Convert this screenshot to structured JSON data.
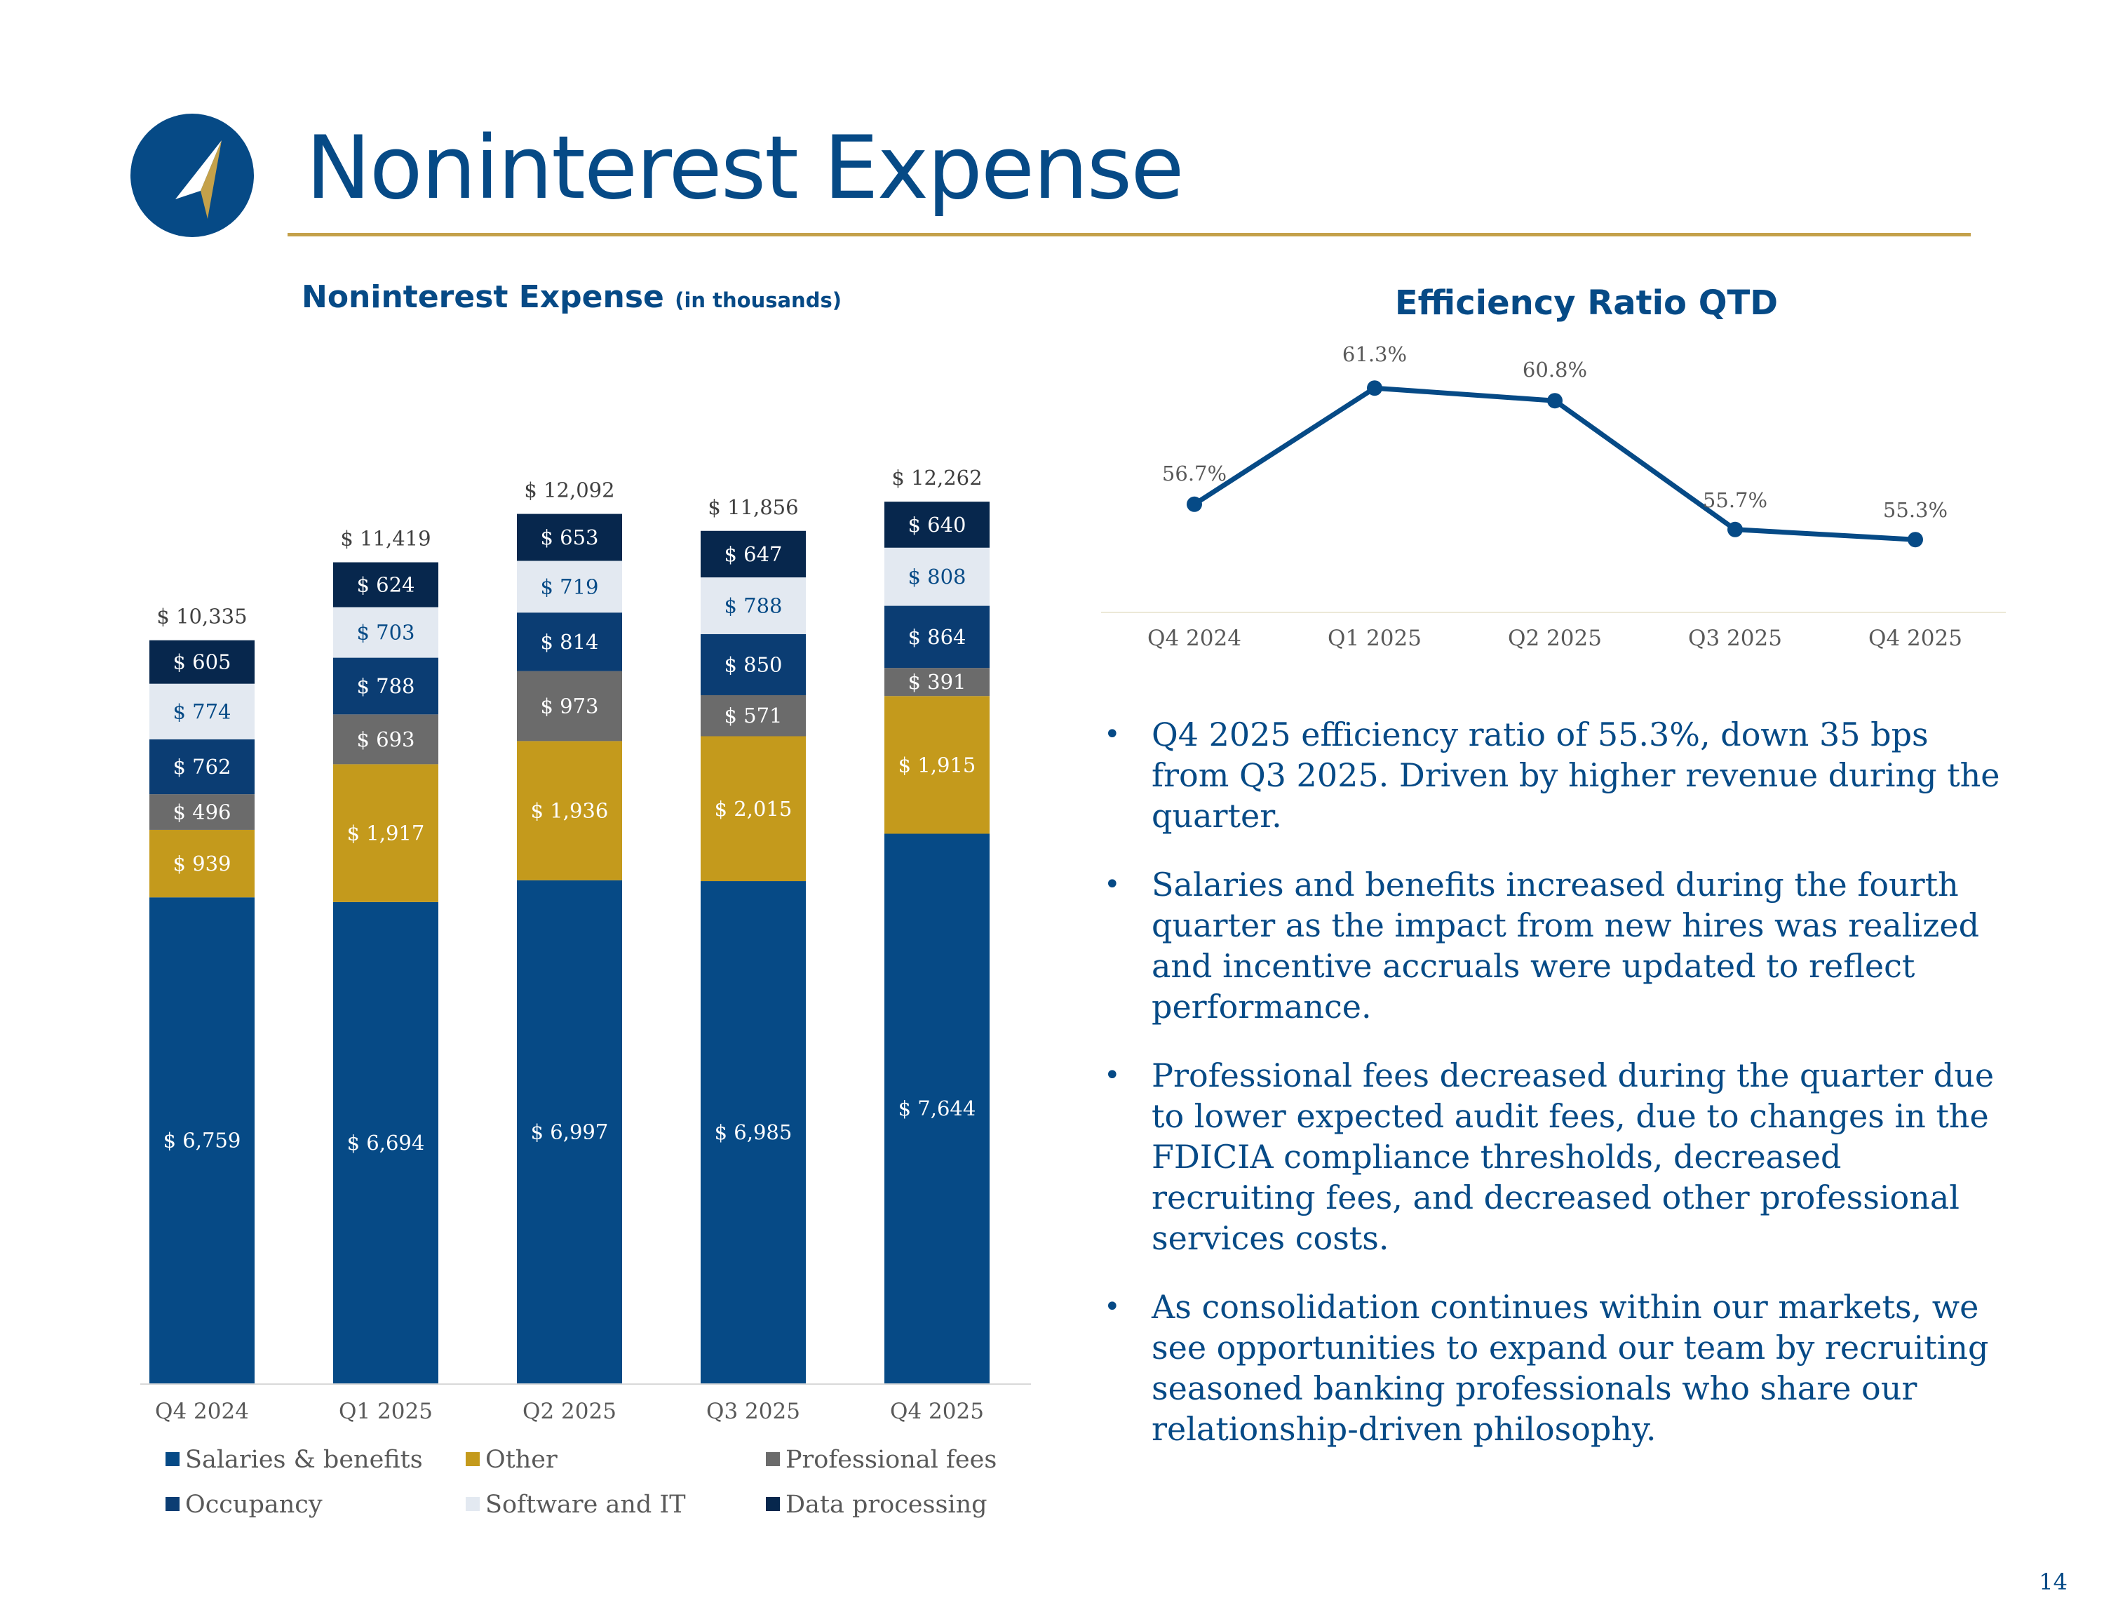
{
  "title": "Noninterest Expense",
  "page_number": "14",
  "logo": {
    "name": "compass-arrow-logo",
    "colors": [
      "#064a86",
      "#c4a14a",
      "#ffffff"
    ]
  },
  "left_chart": {
    "title": "Noninterest Expense",
    "title_note": "(in thousands)"
  },
  "right_chart": {
    "title": "Efficiency Ratio QTD"
  },
  "colors": {
    "brand_blue": "#064a86",
    "gold": "#c4a14a",
    "salaries": "#064a86",
    "other": "#c49a1c",
    "professional_fees": "#6b6b6b",
    "occupancy": "#0b3d73",
    "software_it": "#e3e9f1",
    "data_processing": "#07274d"
  },
  "chart_data": [
    {
      "type": "bar",
      "stacked": true,
      "title": "Noninterest Expense (in thousands)",
      "categories": [
        "Q4 2024",
        "Q1 2025",
        "Q2 2025",
        "Q3 2025",
        "Q4 2025"
      ],
      "series": [
        {
          "name": "Salaries & benefits",
          "values": [
            6759,
            6694,
            6997,
            6985,
            7644
          ],
          "labels": [
            "$ 6,759",
            "$ 6,694",
            "$ 6,997",
            "$ 6,985",
            "$ 7,644"
          ]
        },
        {
          "name": "Other",
          "values": [
            939,
            1917,
            1936,
            2015,
            1915
          ],
          "labels": [
            "$ 939",
            "$ 1,917",
            "$ 1,936",
            "$ 2,015",
            "$ 1,915"
          ]
        },
        {
          "name": "Professional fees",
          "values": [
            496,
            693,
            973,
            571,
            391
          ],
          "labels": [
            "$ 496",
            "$ 693",
            "$ 973",
            "$ 571",
            "$ 391"
          ]
        },
        {
          "name": "Occupancy",
          "values": [
            762,
            788,
            814,
            850,
            864
          ],
          "labels": [
            "$ 762",
            "$ 788",
            "$ 814",
            "$ 850",
            "$ 864"
          ]
        },
        {
          "name": "Software and IT",
          "values": [
            774,
            703,
            719,
            788,
            808
          ],
          "labels": [
            "$ 774",
            "$ 703",
            "$ 719",
            "$ 788",
            "$ 808"
          ]
        },
        {
          "name": "Data processing",
          "values": [
            605,
            624,
            653,
            647,
            640
          ],
          "labels": [
            "$ 605",
            "$ 624",
            "$ 653",
            "$ 647",
            "$ 640"
          ]
        }
      ],
      "totals": [
        10335,
        11419,
        12092,
        11856,
        12262
      ],
      "total_labels": [
        "$ 10,335",
        "$ 11,419",
        "$ 12,092",
        "$ 11,856",
        "$ 12,262"
      ],
      "legend": [
        "Salaries & benefits",
        "Other",
        "Professional fees",
        "Occupancy",
        "Software and IT",
        "Data processing"
      ],
      "ylim": [
        0,
        13000
      ],
      "grid": false
    },
    {
      "type": "line",
      "title": "Efficiency Ratio QTD",
      "categories": [
        "Q4 2024",
        "Q1 2025",
        "Q2 2025",
        "Q3 2025",
        "Q4 2025"
      ],
      "values": [
        56.7,
        61.3,
        60.8,
        55.7,
        55.3
      ],
      "labels": [
        "56.7%",
        "61.3%",
        "60.8%",
        "55.7%",
        "55.3%"
      ],
      "ylim": [
        50,
        63
      ],
      "grid": false
    }
  ],
  "bullets": [
    "Q4 2025 efficiency ratio of 55.3%, down 35 bps from Q3 2025.  Driven by higher revenue during the quarter.",
    "Salaries and benefits increased during the fourth quarter as the impact from new hires was realized and incentive accruals were updated to reflect performance.",
    "Professional fees decreased during the quarter due to lower expected audit fees, due to changes in the FDICIA compliance thresholds, decreased recruiting fees, and decreased other professional services costs.",
    "As consolidation continues within our markets, we see opportunities to expand our team by recruiting seasoned banking professionals who share our relationship-driven philosophy."
  ],
  "bullet_marker": "•"
}
